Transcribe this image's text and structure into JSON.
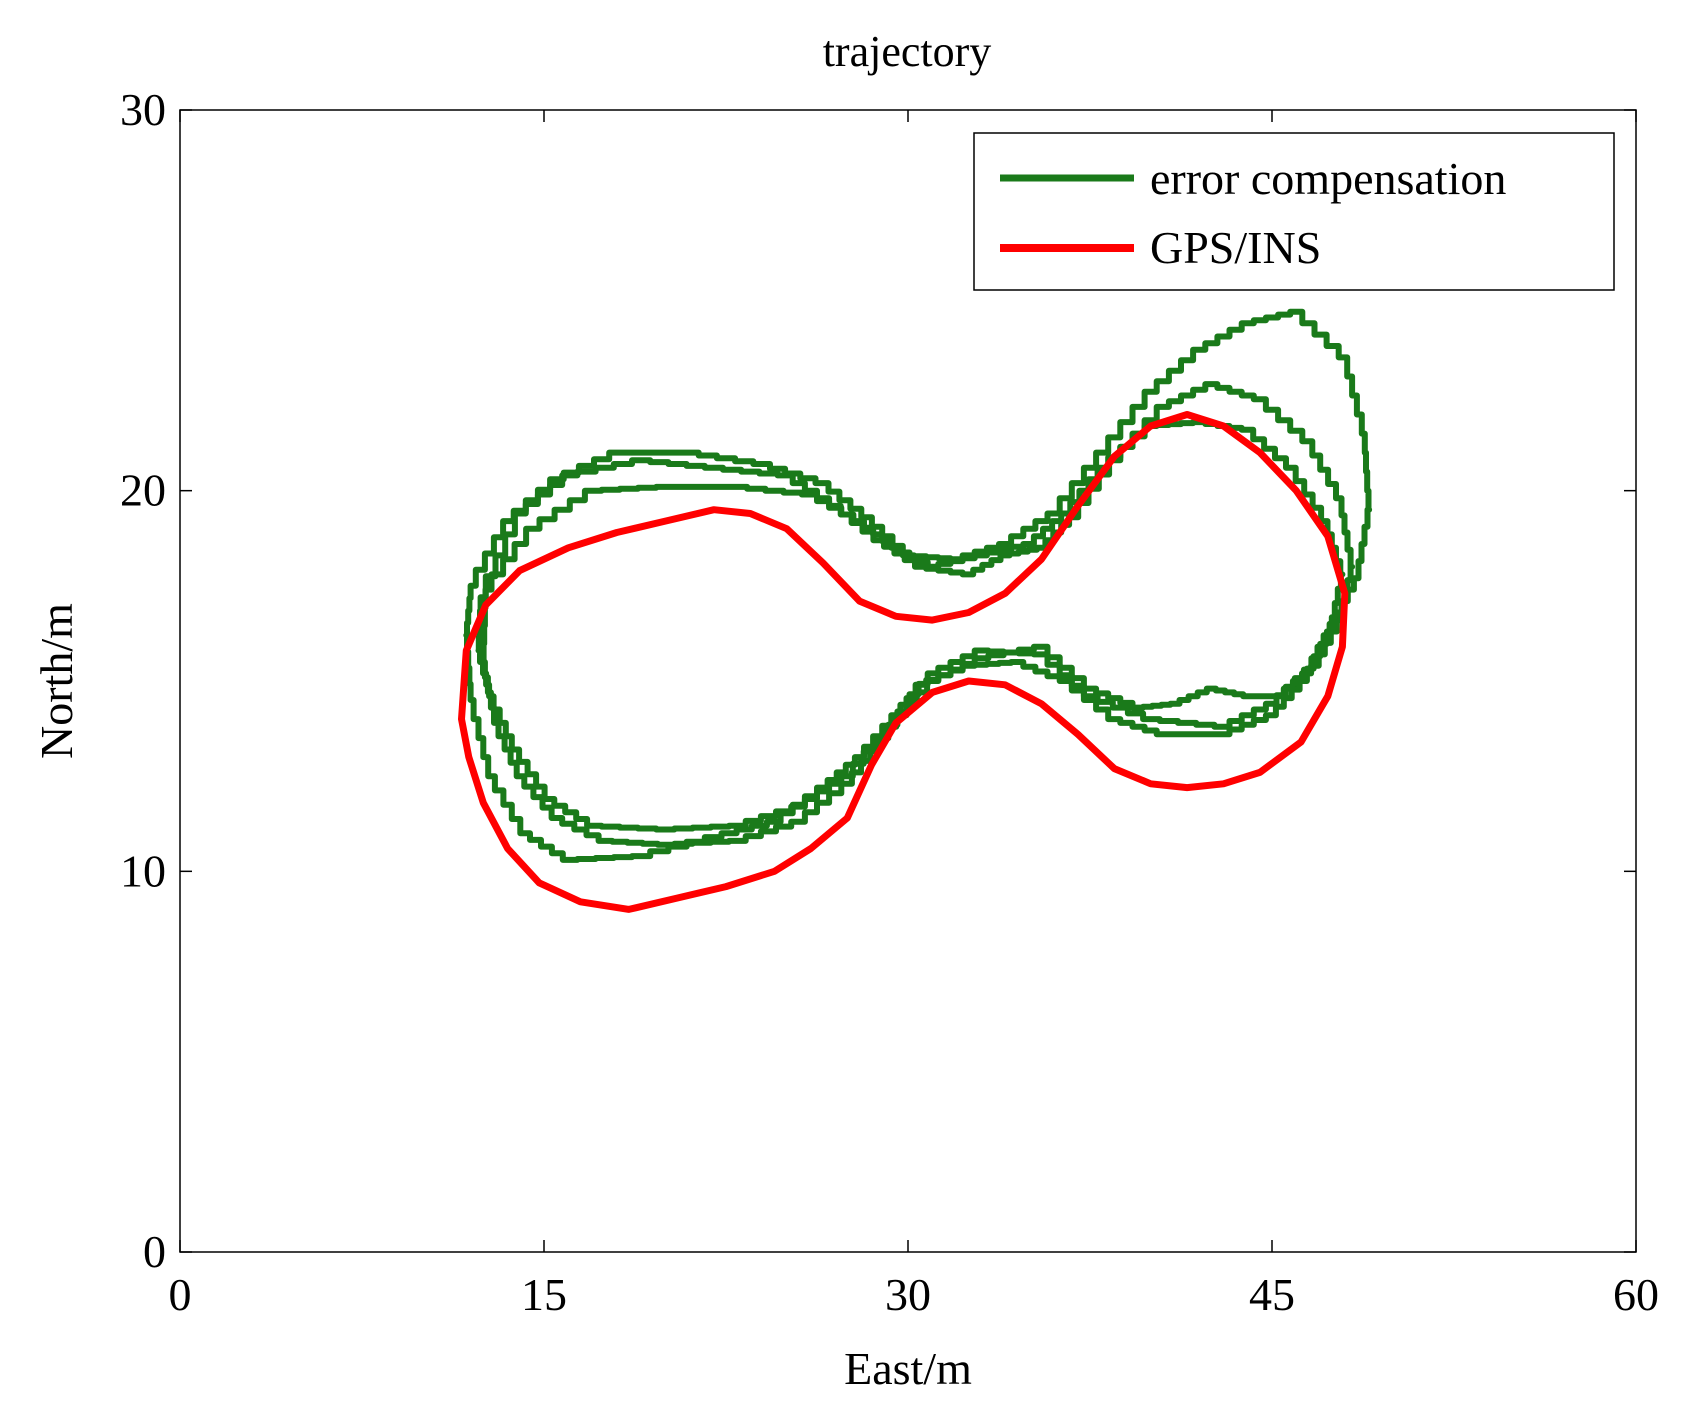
{
  "chart_data": {
    "type": "line",
    "title": "trajectory",
    "xlabel": "East/m",
    "ylabel": "North/m",
    "xlim": [
      0,
      60
    ],
    "ylim": [
      0,
      30
    ],
    "xticks": [
      "0",
      "15",
      "30",
      "45",
      "60"
    ],
    "yticks": [
      "0",
      "10",
      "20",
      "30"
    ],
    "grid": false,
    "legend_position": "top-right",
    "series": [
      {
        "name": "error compensation",
        "color": "#1a7a1a",
        "laps": [
          [
            [
              12.0,
              17.5
            ],
            [
              13.5,
              19.2
            ],
            [
              15.5,
              20.3
            ],
            [
              18,
              21.0
            ],
            [
              21,
              21.0
            ],
            [
              24,
              20.7
            ],
            [
              26.5,
              20.2
            ],
            [
              28.3,
              19.3
            ],
            [
              30,
              18.3
            ],
            [
              32,
              18.2
            ],
            [
              34,
              18.6
            ],
            [
              36,
              19.4
            ],
            [
              38,
              21.0
            ],
            [
              40,
              22.6
            ],
            [
              42,
              23.7
            ],
            [
              44,
              24.4
            ],
            [
              46,
              24.7
            ],
            [
              48,
              23.5
            ],
            [
              48.8,
              21.5
            ],
            [
              49.0,
              19.5
            ],
            [
              48.5,
              17.7
            ],
            [
              47.5,
              16.5
            ],
            [
              46.5,
              15.3
            ],
            [
              45,
              14.4
            ],
            [
              43,
              13.8
            ],
            [
              40,
              14.0
            ],
            [
              37.5,
              14.6
            ],
            [
              35.5,
              15.7
            ],
            [
              33,
              15.8
            ],
            [
              31,
              15.2
            ],
            [
              29.5,
              14.1
            ],
            [
              28,
              13.0
            ],
            [
              26.5,
              12.2
            ],
            [
              24.5,
              11.3
            ],
            [
              22,
              10.9
            ],
            [
              19,
              10.4
            ],
            [
              16,
              10.3
            ],
            [
              14.2,
              11.0
            ],
            [
              12.8,
              12.5
            ],
            [
              12.0,
              14.5
            ],
            [
              11.8,
              16.2
            ],
            [
              12.0,
              17.5
            ]
          ],
          [
            [
              12.4,
              17.2
            ],
            [
              14,
              19.4
            ],
            [
              16,
              20.4
            ],
            [
              19,
              20.8
            ],
            [
              22,
              20.6
            ],
            [
              25,
              20.4
            ],
            [
              27,
              19.6
            ],
            [
              28.8,
              18.7
            ],
            [
              30.5,
              18.0
            ],
            [
              32.5,
              17.8
            ],
            [
              34,
              18.3
            ],
            [
              35.5,
              18.5
            ],
            [
              36.8,
              19.3
            ],
            [
              38.5,
              20.8
            ],
            [
              40.5,
              22.2
            ],
            [
              42.5,
              22.8
            ],
            [
              44.5,
              22.4
            ],
            [
              46.5,
              21.3
            ],
            [
              47.8,
              19.8
            ],
            [
              48.3,
              18.0
            ],
            [
              47.8,
              16.6
            ],
            [
              46.8,
              15.4
            ],
            [
              45.3,
              14.6
            ],
            [
              44,
              14.6
            ],
            [
              42.5,
              14.8
            ],
            [
              41,
              14.4
            ],
            [
              39.5,
              14.3
            ],
            [
              37.5,
              14.8
            ],
            [
              35.5,
              15.9
            ],
            [
              33,
              15.6
            ],
            [
              31,
              15.0
            ],
            [
              29.3,
              13.8
            ],
            [
              27.5,
              12.5
            ],
            [
              25.5,
              11.7
            ],
            [
              23,
              11.2
            ],
            [
              20,
              11.1
            ],
            [
              17,
              11.2
            ],
            [
              15.2,
              11.9
            ],
            [
              13.8,
              13.2
            ],
            [
              12.8,
              14.6
            ],
            [
              12.3,
              15.8
            ],
            [
              12.4,
              17.2
            ]
          ],
          [
            [
              12.6,
              17.4
            ],
            [
              14.5,
              19.0
            ],
            [
              17,
              20.0
            ],
            [
              20,
              20.1
            ],
            [
              23,
              20.1
            ],
            [
              26,
              19.9
            ],
            [
              28,
              19.2
            ],
            [
              29.5,
              18.5
            ],
            [
              31,
              18.0
            ],
            [
              33,
              18.3
            ],
            [
              35,
              18.6
            ],
            [
              36.5,
              19.4
            ],
            [
              38,
              20.6
            ],
            [
              40,
              21.7
            ],
            [
              42,
              21.8
            ],
            [
              44,
              21.6
            ],
            [
              45.8,
              20.6
            ],
            [
              47.2,
              19.2
            ],
            [
              47.9,
              17.8
            ],
            [
              47.4,
              16.3
            ],
            [
              46.3,
              15.0
            ],
            [
              45,
              14.1
            ],
            [
              43,
              13.6
            ],
            [
              40.5,
              13.6
            ],
            [
              38.5,
              14.0
            ],
            [
              36.5,
              15.0
            ],
            [
              34.5,
              15.5
            ],
            [
              32.5,
              15.4
            ],
            [
              30.5,
              14.9
            ],
            [
              29,
              13.5
            ],
            [
              27.5,
              12.3
            ],
            [
              25.5,
              11.3
            ],
            [
              23,
              10.8
            ],
            [
              20,
              10.7
            ],
            [
              17.5,
              10.8
            ],
            [
              15.5,
              11.4
            ],
            [
              14,
              12.5
            ],
            [
              13.0,
              13.9
            ],
            [
              12.5,
              15.5
            ],
            [
              12.6,
              17.4
            ]
          ]
        ]
      },
      {
        "name": "GPS/INS",
        "color": "#ff0000",
        "points": [
          [
            11.6,
            14.0
          ],
          [
            11.8,
            15.8
          ],
          [
            12.6,
            17.0
          ],
          [
            14,
            17.9
          ],
          [
            16,
            18.5
          ],
          [
            18,
            18.9
          ],
          [
            20,
            19.2
          ],
          [
            22,
            19.5
          ],
          [
            23.5,
            19.4
          ],
          [
            25,
            19.0
          ],
          [
            26.5,
            18.1
          ],
          [
            28,
            17.1
          ],
          [
            29.5,
            16.7
          ],
          [
            31,
            16.6
          ],
          [
            32.5,
            16.8
          ],
          [
            34,
            17.3
          ],
          [
            35.5,
            18.2
          ],
          [
            37,
            19.6
          ],
          [
            38.5,
            20.9
          ],
          [
            40,
            21.7
          ],
          [
            41.5,
            22.0
          ],
          [
            43,
            21.7
          ],
          [
            44.5,
            21.0
          ],
          [
            46,
            20.0
          ],
          [
            47.3,
            18.8
          ],
          [
            48.0,
            17.3
          ],
          [
            47.9,
            15.9
          ],
          [
            47.3,
            14.6
          ],
          [
            46.2,
            13.4
          ],
          [
            44.5,
            12.6
          ],
          [
            43,
            12.3
          ],
          [
            41.5,
            12.2
          ],
          [
            40,
            12.3
          ],
          [
            38.5,
            12.7
          ],
          [
            37,
            13.6
          ],
          [
            35.5,
            14.4
          ],
          [
            34,
            14.9
          ],
          [
            32.5,
            15.0
          ],
          [
            31,
            14.7
          ],
          [
            29.5,
            13.9
          ],
          [
            28.5,
            12.8
          ],
          [
            27.5,
            11.4
          ],
          [
            26,
            10.6
          ],
          [
            24.5,
            10.0
          ],
          [
            22.5,
            9.6
          ],
          [
            20.5,
            9.3
          ],
          [
            18.5,
            9.0
          ],
          [
            16.5,
            9.2
          ],
          [
            14.8,
            9.7
          ],
          [
            13.5,
            10.6
          ],
          [
            12.5,
            11.8
          ],
          [
            11.9,
            13.0
          ],
          [
            11.6,
            14.0
          ]
        ]
      }
    ]
  }
}
